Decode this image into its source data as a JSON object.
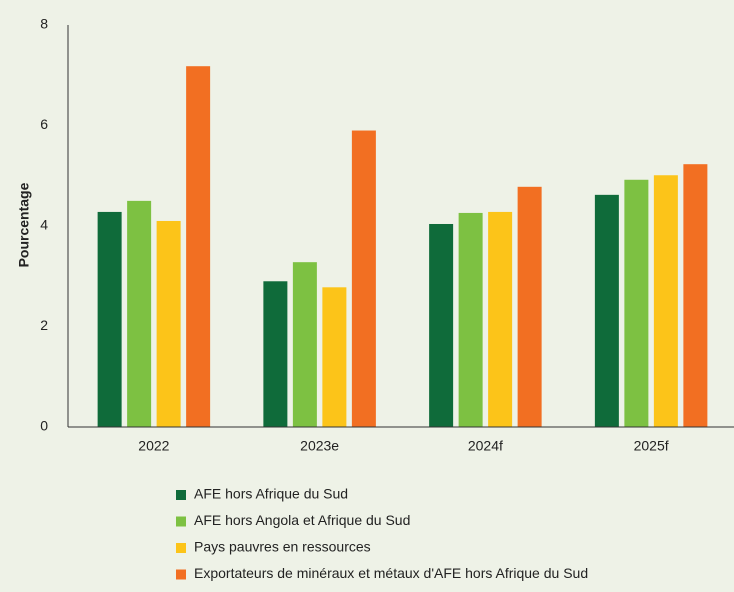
{
  "chart_data": {
    "type": "bar",
    "ylabel": "Pourcentage",
    "categories": [
      "2022",
      "2023e",
      "2024f",
      "2025f"
    ],
    "series": [
      {
        "name": "AFE hors Afrique du Sud",
        "color": "#0f6b3a",
        "values": [
          4.28,
          2.9,
          4.04,
          4.62
        ]
      },
      {
        "name": "AFE hors Angola et Afrique du Sud",
        "color": "#7dc142",
        "values": [
          4.5,
          3.28,
          4.26,
          4.92
        ]
      },
      {
        "name": "Pays pauvres en ressources",
        "color": "#fcc419",
        "values": [
          4.1,
          2.78,
          4.28,
          5.01
        ]
      },
      {
        "name": "Exportateurs de minéraux et métaux d'AFE hors Afrique du Sud",
        "color": "#f26f22",
        "values": [
          7.18,
          5.9,
          4.78,
          5.23
        ]
      }
    ],
    "ylim": [
      0,
      8
    ],
    "yticks": [
      0,
      2,
      4,
      6,
      8
    ],
    "grid": false
  }
}
